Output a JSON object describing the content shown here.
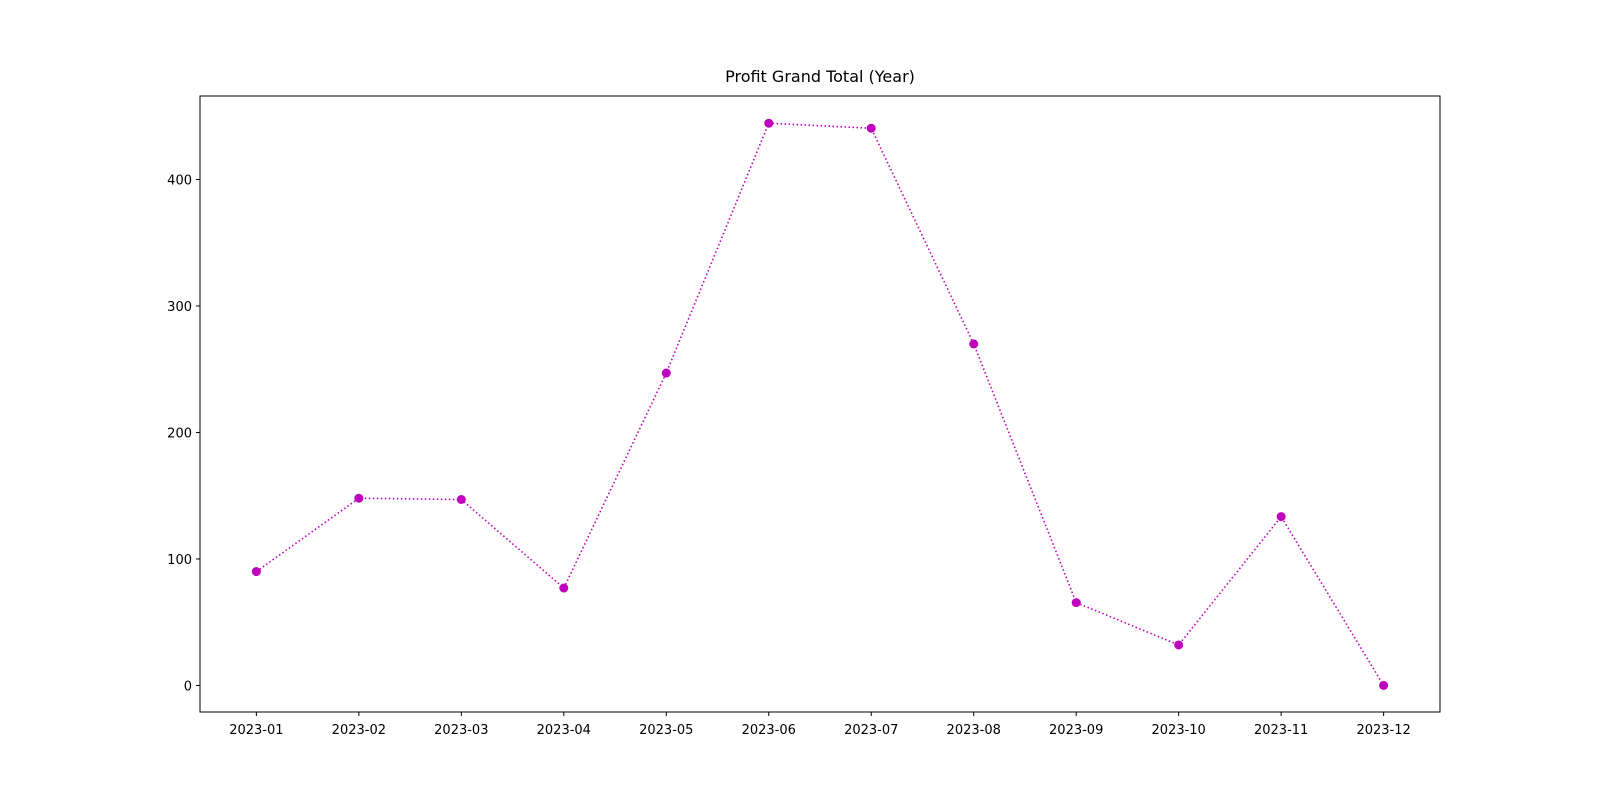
{
  "chart_data": {
    "type": "line",
    "title": "Profit Grand Total (Year)",
    "categories": [
      "2023-01",
      "2023-02",
      "2023-03",
      "2023-04",
      "2023-05",
      "2023-06",
      "2023-07",
      "2023-08",
      "2023-09",
      "2023-10",
      "2023-11",
      "2023-12"
    ],
    "series": [
      {
        "name": "Profit",
        "color": "#bf00bf",
        "values": [
          90,
          148,
          147,
          77,
          247,
          444.5,
          440.5,
          270,
          65.5,
          32,
          133.5,
          0
        ]
      }
    ],
    "ylim": [
      -21,
      466
    ],
    "yticks": [
      0,
      100,
      200,
      300,
      400
    ],
    "grid": false,
    "line_style": "dotted",
    "marker": "circle"
  }
}
